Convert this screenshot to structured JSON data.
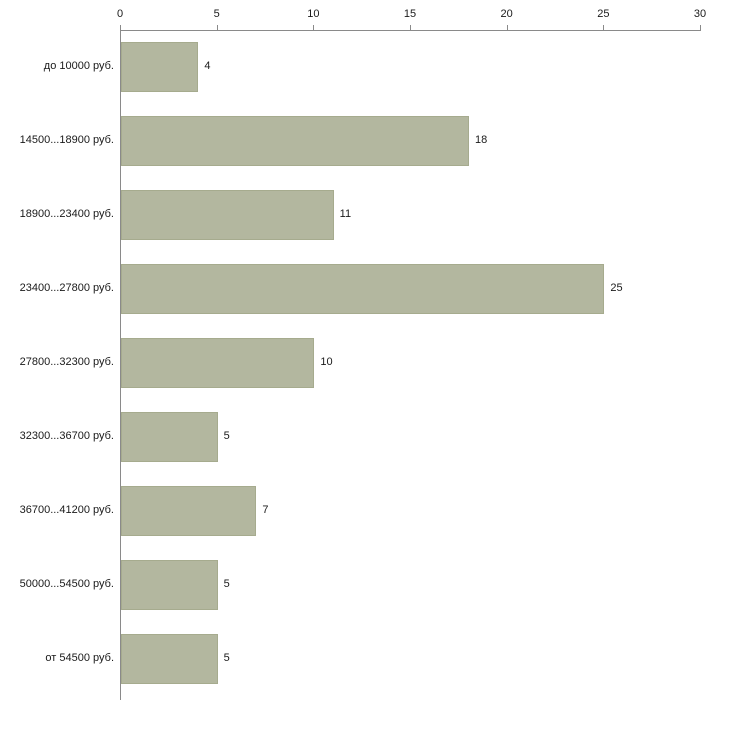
{
  "chart_data": {
    "type": "bar",
    "orientation": "horizontal",
    "title": "",
    "xlabel": "",
    "ylabel": "",
    "categories": [
      "до 10000 руб.",
      "14500...18900 руб.",
      "18900...23400 руб.",
      "23400...27800 руб.",
      "27800...32300 руб.",
      "32300...36700 руб.",
      "36700...41200 руб.",
      "50000...54500 руб.",
      "от 54500 руб."
    ],
    "values": [
      4,
      18,
      11,
      25,
      10,
      5,
      7,
      5,
      5
    ],
    "xlim": [
      0,
      30
    ],
    "x_ticks": [
      "0",
      "5",
      "10",
      "15",
      "20",
      "25",
      "30"
    ],
    "grid": false,
    "legend": false,
    "bar_color": "#b3b79f",
    "bar_border_color": "#a6ab8e",
    "axis_color": "#8a8a8a",
    "text_color": "#1a1a1a",
    "background_color": "#ffffff"
  }
}
